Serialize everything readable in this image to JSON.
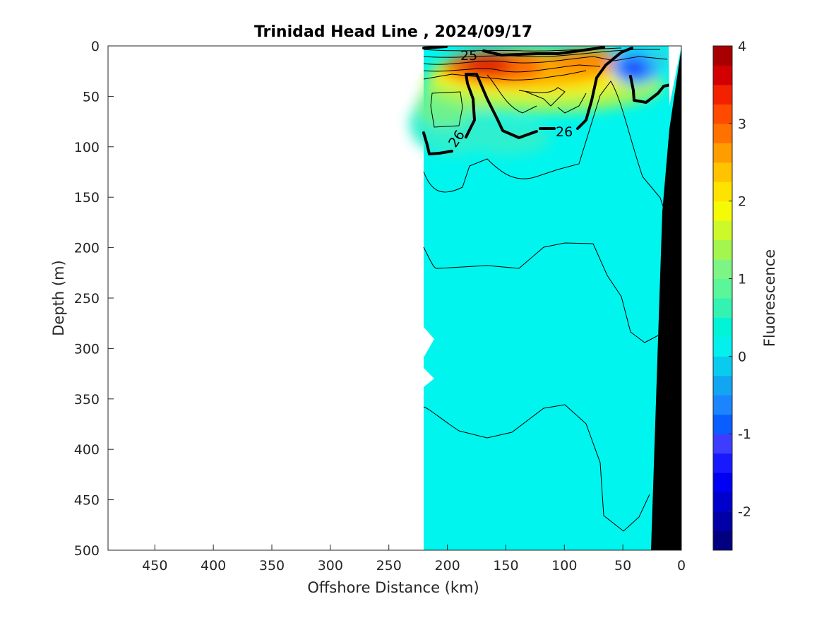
{
  "chart_data": {
    "type": "contour",
    "title": "Trinidad Head Line , 2024/09/17",
    "xlabel": "Offshore Distance (km)",
    "ylabel": "Depth (m)",
    "xlim": [
      490,
      0
    ],
    "ylim": [
      0,
      500
    ],
    "x_reversed": true,
    "y_reversed": true,
    "xticks": [
      450,
      400,
      350,
      300,
      250,
      200,
      150,
      100,
      50,
      0
    ],
    "yticks": [
      0,
      50,
      100,
      150,
      200,
      250,
      300,
      350,
      400,
      450,
      500
    ],
    "data_extent_km": [
      220,
      0
    ],
    "colorbar": {
      "label": "Fluorescence",
      "range": [
        -2.5,
        4
      ],
      "ticks": [
        4,
        3,
        2,
        1,
        0,
        -1,
        -2
      ],
      "colors": [
        "#000080",
        "#0000a6",
        "#0000cc",
        "#0000f2",
        "#1919ff",
        "#3d3dff",
        "#0a5eff",
        "#1a85ff",
        "#12a6f2",
        "#08cbee",
        "#04f0ee",
        "#02f4d6",
        "#34f2b2",
        "#5bf59a",
        "#7cf585",
        "#a4f64e",
        "#cdf92a",
        "#f5fb06",
        "#ffe300",
        "#ffc300",
        "#ff9c00",
        "#ff7200",
        "#ff4a00",
        "#f42100",
        "#d20000",
        "#a80000"
      ]
    },
    "fluorescence_features": [
      {
        "name": "surface maximum",
        "x_km": 160,
        "depth_m": 20,
        "value": 4
      },
      {
        "name": "nearshore minimum",
        "x_km": 45,
        "depth_m": 22,
        "value": -0.8
      },
      {
        "name": "background",
        "value": 0.1
      }
    ],
    "density_contours": [
      {
        "level": "25",
        "bold": true,
        "labelled": true
      },
      {
        "level": "26",
        "bold": true,
        "labelled": true
      },
      {
        "level": "",
        "bold": false,
        "depth_m_approx": [
          130,
          210,
          360
        ]
      }
    ],
    "contour_labels": [
      "25",
      "26",
      "26"
    ],
    "bathymetry": "black wedge from 25 km at 500 m rising to 0 km at surface"
  }
}
